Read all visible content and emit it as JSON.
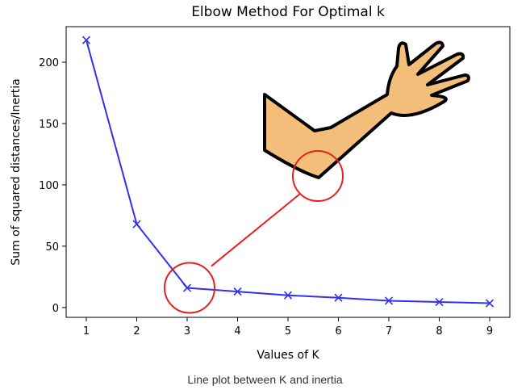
{
  "chart_data": {
    "type": "line",
    "title": "Elbow Method For Optimal k",
    "xlabel": "Values of K",
    "ylabel": "Sum of squared distances/Inertia",
    "x": [
      1,
      2,
      3,
      4,
      5,
      6,
      7,
      8,
      9
    ],
    "y": [
      218,
      68,
      16,
      13,
      10,
      8,
      5.5,
      4.5,
      3.5
    ],
    "xlim": [
      0.6,
      9.4
    ],
    "ylim": [
      -8,
      229
    ],
    "xticks": [
      1,
      2,
      3,
      4,
      5,
      6,
      7,
      8,
      9
    ],
    "yticks": [
      0,
      50,
      100,
      150,
      200
    ],
    "line_color": "#3030f0",
    "marker": "x",
    "grid": false,
    "annotation": {
      "type": "elbow-arm-illustration",
      "highlight_x": 3,
      "highlight_y": 16,
      "highlight_color": "#e62020",
      "arm_color": "#f3bd7a"
    }
  },
  "caption": "Line plot between K and inertia"
}
